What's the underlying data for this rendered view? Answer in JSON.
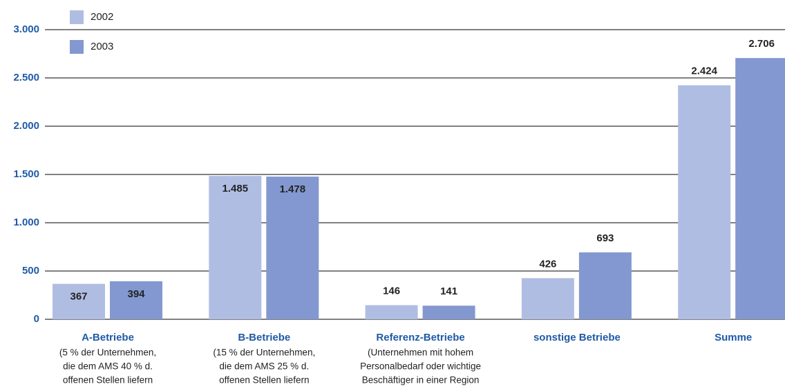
{
  "chart_data": {
    "type": "bar",
    "categories": [
      "A-Betriebe",
      "B-Betriebe",
      "Referenz-Betriebe",
      "sonstige Betriebe",
      "Summe"
    ],
    "category_notes": [
      [
        "(5 % der Unternehmen,",
        "die dem AMS 40 % d.",
        "offenen Stellen liefern"
      ],
      [
        "(15 % der Unternehmen,",
        "die dem AMS 25 % d.",
        "offenen Stellen liefern"
      ],
      [
        "(Unternehmen mit hohem",
        "Personalbedarf oder wichtige",
        "Beschäftiger in einer Region"
      ],
      [],
      []
    ],
    "series": [
      {
        "name": "2002",
        "color": "#b0bde3",
        "values": [
          367,
          1485,
          146,
          426,
          2424
        ],
        "value_labels": [
          "367",
          "1.485",
          "146",
          "426",
          "2.424"
        ]
      },
      {
        "name": "2003",
        "color": "#8398d0",
        "values": [
          394,
          1478,
          141,
          693,
          2706
        ],
        "value_labels": [
          "394",
          "1.478",
          "141",
          "693",
          "2.706"
        ]
      }
    ],
    "ylim": [
      0,
      3000
    ],
    "yticks": [
      0,
      500,
      {
        "value": 1000,
        "label": "1.000"
      },
      {
        "value": 1500,
        "label": "1.500"
      },
      {
        "value": 2000,
        "label": "2.000"
      },
      {
        "value": 2500,
        "label": "2.500"
      },
      {
        "value": 3000,
        "label": "3.000"
      }
    ],
    "grid": true,
    "legend": "top-left"
  }
}
